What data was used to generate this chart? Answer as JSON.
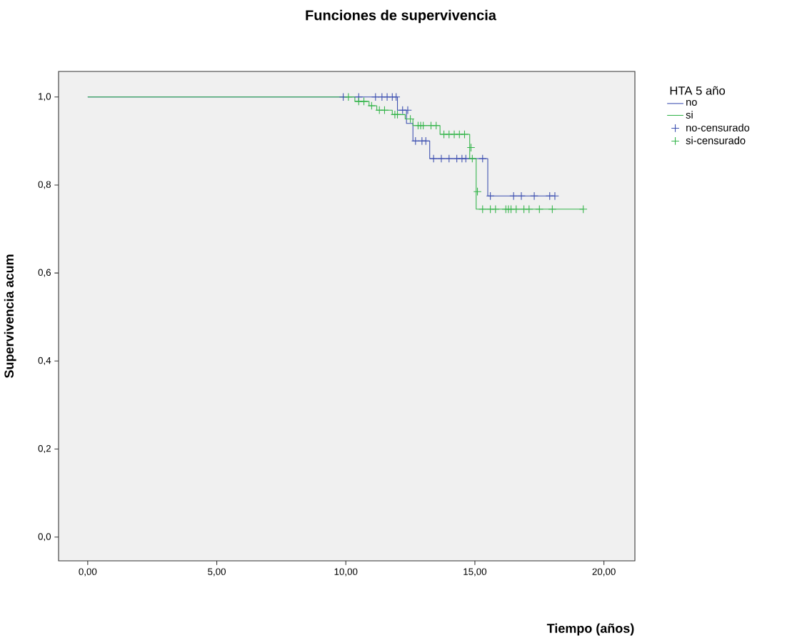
{
  "chart_data": {
    "type": "step",
    "title": "Funciones de supervivencia",
    "xlabel": "Tiempo (años)",
    "ylabel": "Supervivencia acum",
    "legend_title": "HTA 5 año",
    "xlim": [
      -1.13,
      21.2
    ],
    "ylim": [
      -0.054,
      1.058
    ],
    "xticks": [
      {
        "value": 0,
        "label": "0,00"
      },
      {
        "value": 5,
        "label": "5,00"
      },
      {
        "value": 10,
        "label": "10,00"
      },
      {
        "value": 15,
        "label": "15,00"
      },
      {
        "value": 20,
        "label": "20,00"
      }
    ],
    "yticks": [
      {
        "value": 0,
        "label": "0,0"
      },
      {
        "value": 0.2,
        "label": "0,2"
      },
      {
        "value": 0.4,
        "label": "0,4"
      },
      {
        "value": 0.6,
        "label": "0,6"
      },
      {
        "value": 0.8,
        "label": "0,8"
      },
      {
        "value": 1.0,
        "label": "1,0"
      }
    ],
    "grid": false,
    "legend": "right",
    "series": [
      {
        "name": "no",
        "color": "#3c4fb0",
        "x": [
          0,
          12.0,
          12.35,
          12.6,
          13.25,
          15.5,
          18.1
        ],
        "values": [
          1.0,
          0.97,
          0.94,
          0.9,
          0.86,
          0.775,
          0.775
        ]
      },
      {
        "name": "si",
        "color": "#33b449",
        "x": [
          0,
          10.35,
          10.9,
          11.2,
          11.8,
          12.3,
          12.6,
          13.65,
          14.8,
          15.05,
          19.2
        ],
        "values": [
          1.0,
          0.99,
          0.98,
          0.97,
          0.96,
          0.95,
          0.935,
          0.915,
          0.86,
          0.745,
          0.745
        ]
      },
      {
        "name": "no-censurado",
        "type": "scatter",
        "marker": "cross",
        "color": "#3c4fb0",
        "x": [
          9.9,
          10.5,
          11.15,
          11.4,
          11.6,
          11.8,
          11.95,
          12.2,
          12.4,
          12.7,
          12.95,
          13.1,
          13.4,
          13.7,
          14.0,
          14.3,
          14.5,
          14.65,
          15.3,
          15.6,
          16.5,
          16.8,
          17.3,
          17.9,
          18.1
        ],
        "values": [
          1.0,
          1.0,
          1.0,
          1.0,
          1.0,
          1.0,
          1.0,
          0.97,
          0.97,
          0.9,
          0.9,
          0.9,
          0.86,
          0.86,
          0.86,
          0.86,
          0.86,
          0.86,
          0.86,
          0.775,
          0.775,
          0.775,
          0.775,
          0.775,
          0.775
        ]
      },
      {
        "name": "si-censurado",
        "type": "scatter",
        "marker": "cross",
        "color": "#33b449",
        "x": [
          10.1,
          10.5,
          10.7,
          11.0,
          11.3,
          11.5,
          11.9,
          12.0,
          12.5,
          12.8,
          12.9,
          13.0,
          13.3,
          13.5,
          13.8,
          14.0,
          14.2,
          14.4,
          14.6,
          14.85,
          14.9,
          15.1,
          15.3,
          15.6,
          15.8,
          16.2,
          16.3,
          16.4,
          16.6,
          16.9,
          17.1,
          17.5,
          18.0,
          19.2
        ],
        "values": [
          1.0,
          0.99,
          0.99,
          0.98,
          0.97,
          0.97,
          0.96,
          0.96,
          0.95,
          0.935,
          0.935,
          0.935,
          0.935,
          0.935,
          0.915,
          0.915,
          0.915,
          0.915,
          0.915,
          0.885,
          0.86,
          0.785,
          0.745,
          0.745,
          0.745,
          0.745,
          0.745,
          0.745,
          0.745,
          0.745,
          0.745,
          0.745,
          0.745,
          0.745
        ]
      }
    ]
  }
}
